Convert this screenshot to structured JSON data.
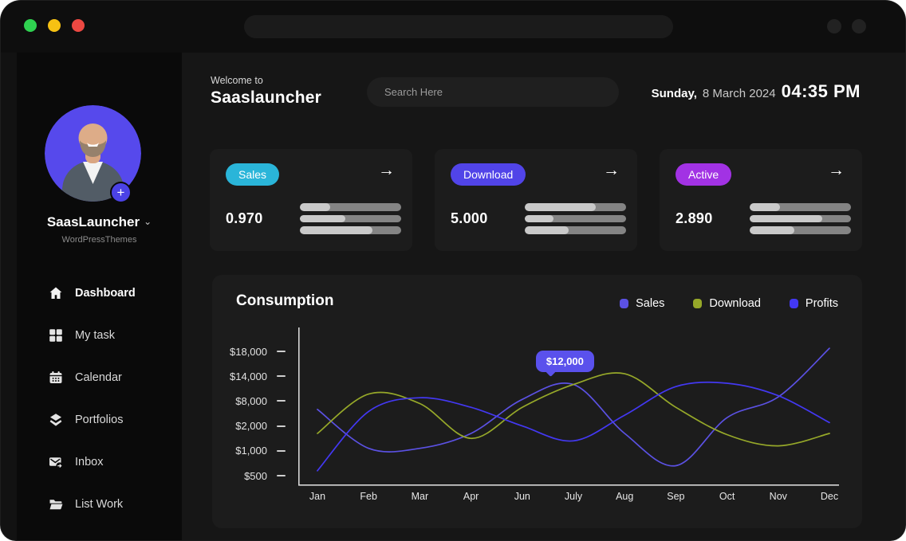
{
  "window": {
    "traffic_lights": [
      {
        "name": "green",
        "color": "#2fd150"
      },
      {
        "name": "yellow",
        "color": "#f6c113"
      },
      {
        "name": "red",
        "color": "#ec4842"
      }
    ]
  },
  "sidebar": {
    "profile": {
      "name": "SaasLauncher",
      "subtitle": "WordPressThemes",
      "add_label": "+"
    },
    "items": [
      {
        "label": "Dashboard",
        "icon": "home-icon",
        "active": true
      },
      {
        "label": "My task",
        "icon": "grid-icon",
        "active": false
      },
      {
        "label": "Calendar",
        "icon": "calendar-icon",
        "active": false
      },
      {
        "label": "Portfolios",
        "icon": "layers-icon",
        "active": false
      },
      {
        "label": "Inbox",
        "icon": "inbox-icon",
        "active": false
      },
      {
        "label": "List Work",
        "icon": "folder-icon",
        "active": false
      }
    ]
  },
  "header": {
    "welcome": "Welcome to",
    "title": "Saaslauncher",
    "search_placeholder": "Search Here",
    "date_day": "Sunday,",
    "date_rest": "8 March 2024",
    "time": "04:35 PM"
  },
  "icons": {
    "arrow_right": "→",
    "chevron_down": "⌄"
  },
  "stats": [
    {
      "badge": "Sales",
      "badge_color": "#2ab5d9",
      "value": "0.970",
      "bars_fill_percent": [
        30,
        45,
        72
      ]
    },
    {
      "badge": "Download",
      "badge_color": "#5144e8",
      "value": "5.000",
      "bars_fill_percent": [
        70,
        28,
        43
      ]
    },
    {
      "badge": "Active",
      "badge_color": "#a232e4",
      "value": "2.890",
      "bars_fill_percent": [
        30,
        72,
        44
      ]
    }
  ],
  "chart_data": {
    "type": "line",
    "title": "Consumption",
    "categories": [
      "Jan",
      "Feb",
      "Mar",
      "Apr",
      "Jun",
      "July",
      "Aug",
      "Sep",
      "Oct",
      "Nov",
      "Dec"
    ],
    "y_tick_labels": [
      "$18,000",
      "$14,000",
      "$8,000",
      "$2,000",
      "$1,000",
      "$500"
    ],
    "y_tick_values": [
      18000,
      14000,
      8000,
      2000,
      1000,
      500
    ],
    "y_scale": "ordinal-between-ticks",
    "grid": false,
    "legend_position": "top-right",
    "axis_color": "#d6d6d6",
    "series": [
      {
        "name": "Sales",
        "color": "#5b51e3",
        "values": [
          6000,
          1100,
          1100,
          1700,
          8400,
          12000,
          1700,
          700,
          4000,
          9000,
          18500
        ]
      },
      {
        "name": "Download",
        "color": "#96a829",
        "values": [
          1700,
          9700,
          7400,
          1500,
          6500,
          12000,
          14400,
          6500,
          1650,
          1200,
          1700
        ]
      },
      {
        "name": "Profits",
        "color": "#4338f2",
        "values": [
          600,
          5500,
          8800,
          6500,
          2000,
          1400,
          4600,
          11500,
          12300,
          9300,
          2800
        ]
      }
    ],
    "tooltip": {
      "label": "$12,000",
      "series": "Sales",
      "category": "July",
      "value": 12000,
      "color": "#5a51ec"
    }
  }
}
